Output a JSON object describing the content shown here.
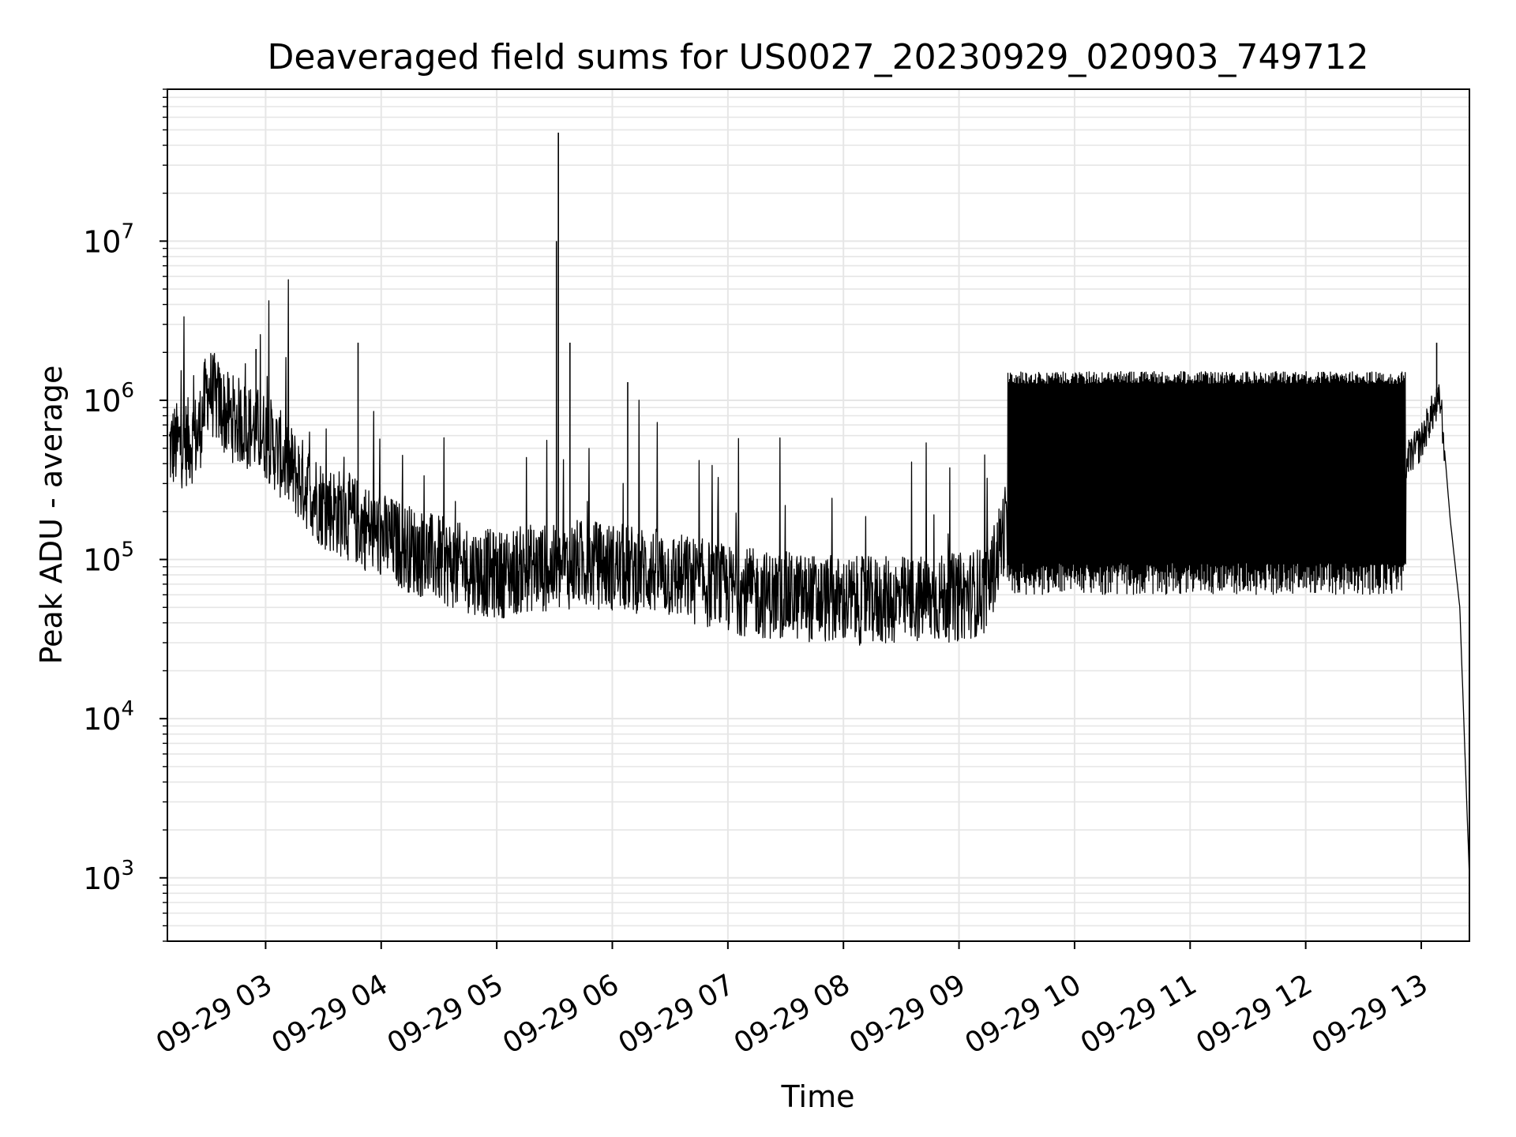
{
  "chart_data": {
    "type": "line",
    "title": "Deaveraged field sums for US0027_20230929_020903_749712",
    "xlabel": "Time",
    "ylabel": "Peak ADU - average",
    "y_scale": "log",
    "grid": "on (major and minor)",
    "line_color": "#000000",
    "grid_color": "#e6e6e6",
    "xlim": [
      "2023-09-29 02:09",
      "2023-09-29 13:25"
    ],
    "ylim": [
      400,
      90000000
    ],
    "x_ticks": [
      {
        "label": "09-29 03",
        "value": "2023-09-29 03:00"
      },
      {
        "label": "09-29 04",
        "value": "2023-09-29 04:00"
      },
      {
        "label": "09-29 05",
        "value": "2023-09-29 05:00"
      },
      {
        "label": "09-29 06",
        "value": "2023-09-29 06:00"
      },
      {
        "label": "09-29 07",
        "value": "2023-09-29 07:00"
      },
      {
        "label": "09-29 08",
        "value": "2023-09-29 08:00"
      },
      {
        "label": "09-29 09",
        "value": "2023-09-29 09:00"
      },
      {
        "label": "09-29 10",
        "value": "2023-09-29 10:00"
      },
      {
        "label": "09-29 11",
        "value": "2023-09-29 11:00"
      },
      {
        "label": "09-29 12",
        "value": "2023-09-29 12:00"
      },
      {
        "label": "09-29 13",
        "value": "2023-09-29 13:00"
      }
    ],
    "y_ticks": [
      {
        "base": "10",
        "exp": "3",
        "value": 1000
      },
      {
        "base": "10",
        "exp": "4",
        "value": 10000
      },
      {
        "base": "10",
        "exp": "5",
        "value": 100000
      },
      {
        "base": "10",
        "exp": "6",
        "value": 1000000
      },
      {
        "base": "10",
        "exp": "7",
        "value": 10000000
      }
    ],
    "series": [
      {
        "x": [
          "2023-09-29 02:10",
          "2023-09-29 02:20",
          "2023-09-29 02:25",
          "2023-09-29 02:30",
          "2023-09-29 02:40",
          "2023-09-29 02:50",
          "2023-09-29 03:00",
          "2023-09-29 03:15",
          "2023-09-29 03:30",
          "2023-09-29 03:45",
          "2023-09-29 04:00",
          "2023-09-29 04:20",
          "2023-09-29 04:40",
          "2023-09-29 05:00",
          "2023-09-29 05:20",
          "2023-09-29 05:33",
          "2023-09-29 05:40",
          "2023-09-29 06:00",
          "2023-09-29 06:20",
          "2023-09-29 06:40",
          "2023-09-29 07:00",
          "2023-09-29 07:20",
          "2023-09-29 07:40",
          "2023-09-29 08:00",
          "2023-09-29 08:20",
          "2023-09-29 08:40",
          "2023-09-29 09:00",
          "2023-09-29 09:15",
          "2023-09-29 09:30",
          "2023-09-29 09:45",
          "2023-09-29 10:00",
          "2023-09-29 10:30",
          "2023-09-29 11:00",
          "2023-09-29 11:30",
          "2023-09-29 12:00",
          "2023-09-29 12:30",
          "2023-09-29 12:50",
          "2023-09-29 13:00",
          "2023-09-29 13:05",
          "2023-09-29 13:10",
          "2023-09-29 13:15",
          "2023-09-29 13:20",
          "2023-09-29 13:25"
        ],
        "y": [
          500000,
          550000,
          600000,
          1200000,
          800000,
          700000,
          600000,
          350000,
          220000,
          180000,
          140000,
          110000,
          90000,
          80000,
          90000,
          85000,
          95000,
          90000,
          85000,
          75000,
          65000,
          60000,
          58000,
          55000,
          55000,
          56000,
          58000,
          65000,
          300000,
          400000,
          350000,
          380000,
          400000,
          380000,
          380000,
          380000,
          380000,
          550000,
          800000,
          1000000,
          180000,
          50000,
          1000
        ]
      }
    ]
  }
}
